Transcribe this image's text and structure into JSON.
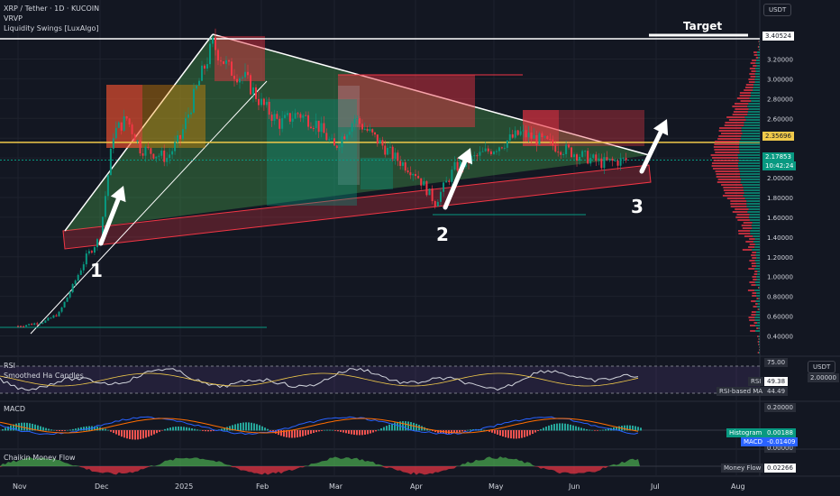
{
  "header": {
    "symbol": "XRP / Tether · 1D · KUCOIN",
    "indicator1": "VRVP",
    "indicator2": "Liquidity Swings [LuxAlgo]",
    "currency_button": "USDT"
  },
  "annotations": {
    "target": "Target",
    "label1": "1",
    "label2": "2",
    "label3": "3"
  },
  "price_axis": {
    "ticks": [
      "3.20000",
      "3.00000",
      "2.80000",
      "2.60000",
      "2.40000",
      "2.20000",
      "2.00000",
      "1.80000",
      "1.60000",
      "1.40000",
      "1.20000",
      "1.00000",
      "0.80000",
      "0.60000",
      "0.40000"
    ],
    "target_tag": "3.40524",
    "level_tag": "2.35696",
    "current_price": "2.17853",
    "countdown": "10:42:24"
  },
  "rsi_pane": {
    "title": "RSI",
    "subtitle": "Smoothed Ha Candles",
    "axis_top": "75.00",
    "axis_mid": "2.00000",
    "rsi_label": "RSI",
    "rsi_value": "49.38",
    "ma_label": "RSI-based MA",
    "ma_value": "44.49",
    "currency_button": "USDT"
  },
  "macd_pane": {
    "title": "MACD",
    "axis_top": "0.20000",
    "axis_bottom": "0.00000",
    "hist_label": "Histogram",
    "hist_value": "0.00188",
    "macd_label": "MACD",
    "macd_value": "-0.01409"
  },
  "cmf_pane": {
    "title": "Chaikin Money Flow",
    "label": "Money Flow",
    "value": "0.02266"
  },
  "time_axis": {
    "labels": [
      "Nov",
      "Dec",
      "2025",
      "Feb",
      "Mar",
      "Apr",
      "May",
      "Jun",
      "Jul",
      "Aug"
    ]
  },
  "colors": {
    "background": "#131722",
    "up": "#089981",
    "down": "#f23645",
    "level": "#f0c94a",
    "triangle": "#4caf50"
  },
  "chart_data": {
    "type": "candlestick",
    "symbol": "XRP/USDT",
    "timeframe": "1D",
    "ylim": [
      0.35,
      3.45
    ],
    "x": [
      "Nov",
      "Dec",
      "2025",
      "Feb",
      "Mar",
      "Apr",
      "May",
      "Jun",
      "Jul",
      "Aug"
    ],
    "close_path": [
      [
        "Nov",
        0.5
      ],
      [
        "Nov",
        0.52
      ],
      [
        "Nov",
        0.55
      ],
      [
        "Nov",
        0.63
      ],
      [
        "Nov",
        0.9
      ],
      [
        "Nov",
        1.2
      ],
      [
        "Dec",
        1.4
      ],
      [
        "Dec",
        2.45
      ],
      [
        "Dec",
        2.6
      ],
      [
        "Dec",
        2.3
      ],
      [
        "Dec",
        2.25
      ],
      [
        "Dec",
        2.2
      ],
      [
        "2025",
        2.4
      ],
      [
        "2025",
        2.9
      ],
      [
        "2025",
        3.35
      ],
      [
        "2025",
        3.1
      ],
      [
        "2025",
        3.0
      ],
      [
        "Feb",
        2.75
      ],
      [
        "Feb",
        2.55
      ],
      [
        "Feb",
        2.65
      ],
      [
        "Feb",
        2.55
      ],
      [
        "Mar",
        2.3
      ],
      [
        "Mar",
        2.6
      ],
      [
        "Mar",
        2.4
      ],
      [
        "Mar",
        2.2
      ],
      [
        "Apr",
        2.05
      ],
      [
        "Apr",
        1.75
      ],
      [
        "Apr",
        2.1
      ],
      [
        "Apr",
        2.2
      ],
      [
        "May",
        2.3
      ],
      [
        "May",
        2.45
      ],
      [
        "May",
        2.35
      ],
      [
        "Jun",
        2.25
      ],
      [
        "Jun",
        2.15
      ],
      [
        "Jun",
        2.18
      ]
    ],
    "levels": [
      {
        "name": "target",
        "value": 3.40524
      },
      {
        "name": "resistance",
        "value": 2.35696
      },
      {
        "name": "current",
        "value": 2.17853
      }
    ],
    "grid": true
  }
}
